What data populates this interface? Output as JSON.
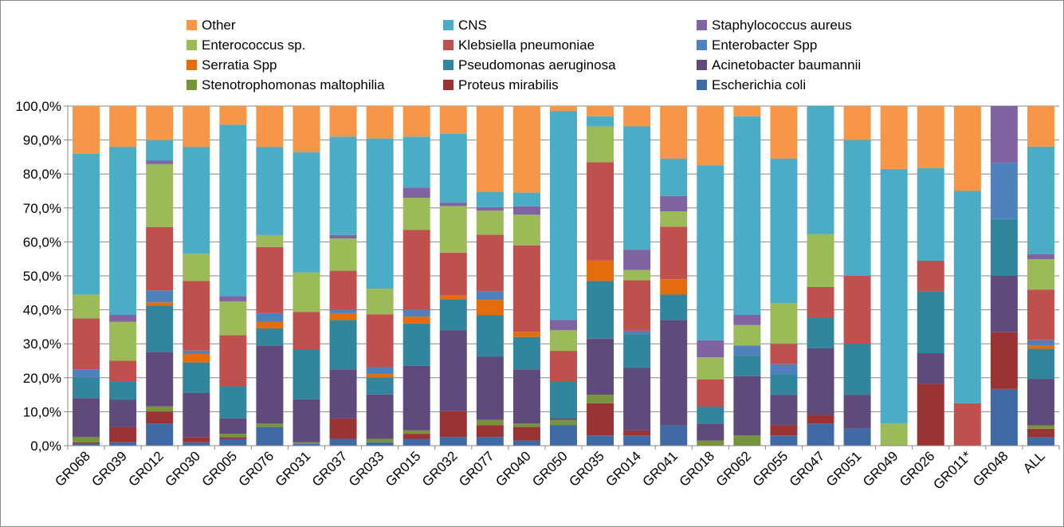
{
  "chart_data": {
    "type": "bar",
    "stacked": true,
    "percent": true,
    "ylim": [
      0,
      100
    ],
    "yticks": [
      "0,0%",
      "10,0%",
      "20,0%",
      "30,0%",
      "40,0%",
      "50,0%",
      "60,0%",
      "70,0%",
      "80,0%",
      "90,0%",
      "100,0%"
    ],
    "grid": true,
    "legend_position": "top",
    "categories": [
      "GR068",
      "GR039",
      "GR012",
      "GR030",
      "GR005",
      "GR076",
      "GR031",
      "GR037",
      "GR033",
      "GR015",
      "GR032",
      "GR077",
      "GR040",
      "GR050",
      "GR035",
      "GR014",
      "GR041",
      "GR018",
      "GR062",
      "GR055",
      "GR047",
      "GR051",
      "GR049",
      "GR026",
      "GR011*",
      "GR048",
      "ALL"
    ],
    "series": [
      {
        "name": "Escherichia coli",
        "color": "#3f6aa6",
        "values": [
          0.5,
          1,
          6.5,
          1,
          2,
          5.5,
          0.5,
          2,
          1,
          2,
          2.5,
          2.5,
          1.5,
          6,
          3,
          3,
          6,
          0,
          0,
          3,
          6.5,
          5,
          0,
          0,
          0,
          16.7,
          2.5
        ]
      },
      {
        "name": "Proteus mirabilis",
        "color": "#9b3335",
        "values": [
          0.5,
          4.5,
          3.5,
          1.5,
          0.5,
          0,
          0,
          6,
          0,
          1.5,
          7.5,
          3.5,
          4,
          0,
          9.5,
          1.5,
          0,
          0,
          0,
          3,
          2.5,
          0,
          0,
          18.2,
          0,
          16.7,
          2.5
        ]
      },
      {
        "name": "Stenotrophomonas maltophilia",
        "color": "#77933c",
        "values": [
          1.5,
          0,
          1.5,
          0,
          1,
          1,
          0.5,
          0,
          1,
          1,
          0,
          1.5,
          1,
          1.5,
          2.5,
          0,
          0,
          1.5,
          3,
          0,
          0,
          0,
          0,
          0,
          0,
          0,
          1
        ]
      },
      {
        "name": "Acinetobacter baumannii",
        "color": "#604a7b",
        "values": [
          11.5,
          8,
          16,
          13,
          4.5,
          23,
          12.5,
          14.5,
          13,
          19,
          23.5,
          18.5,
          16,
          0.5,
          16.5,
          18.5,
          31,
          5,
          17.5,
          9,
          19.5,
          10,
          0,
          9,
          0,
          16.6,
          13.7
        ]
      },
      {
        "name": "Pseudomonas aeruginosa",
        "color": "#31859c",
        "values": [
          6,
          5.5,
          13.5,
          9,
          9.5,
          5,
          14.5,
          14.5,
          5,
          12.5,
          9,
          12,
          9.5,
          10.5,
          17,
          10,
          7.5,
          5,
          6,
          6,
          9,
          15,
          0,
          18.2,
          0,
          16.7,
          9
        ]
      },
      {
        "name": "Serratia Spp",
        "color": "#e46c0a",
        "values": [
          0,
          0,
          1,
          2.5,
          0,
          2,
          0,
          2,
          1,
          2,
          1,
          4.5,
          1.5,
          0,
          6,
          0,
          4.5,
          0,
          0,
          0,
          0,
          0,
          0,
          0,
          0,
          0,
          1
        ]
      },
      {
        "name": "Enterobacter Spp",
        "color": "#4f81bd",
        "values": [
          2.5,
          0,
          3.5,
          1,
          0,
          2.5,
          0,
          1,
          2,
          2,
          0,
          2.5,
          0,
          0,
          0,
          1,
          0,
          0,
          3,
          3,
          0,
          0,
          0,
          0,
          0,
          16.6,
          1.5
        ]
      },
      {
        "name": "Klebsiella pneumoniae",
        "color": "#c0504d",
        "values": [
          15,
          6,
          18.5,
          20.5,
          15,
          19.5,
          11,
          11.5,
          15.5,
          23.5,
          12.5,
          16.5,
          25.5,
          9,
          29,
          15,
          15.5,
          8,
          0,
          6,
          9,
          20,
          0,
          9,
          12.5,
          0,
          15
        ]
      },
      {
        "name": "Enterococcus sp.",
        "color": "#9bbb59",
        "values": [
          7,
          11.5,
          18.5,
          8,
          10,
          3.5,
          11.5,
          9.5,
          7.5,
          9.5,
          13.5,
          7,
          9,
          6,
          10.5,
          3,
          4.5,
          6.5,
          6,
          12,
          15.5,
          0,
          6.5,
          0,
          0,
          0,
          9
        ]
      },
      {
        "name": "Staphylococcus aureus",
        "color": "#8064a2",
        "values": [
          0,
          2,
          1,
          0,
          1.5,
          0,
          0,
          1,
          0,
          3,
          1,
          1,
          2.5,
          3,
          0,
          6,
          4.5,
          5,
          3,
          0,
          0,
          0,
          0,
          0,
          0,
          16.7,
          1.5
        ]
      },
      {
        "name": "CNS",
        "color": "#4bacc6",
        "values": [
          41.5,
          49.5,
          6,
          31.5,
          50.5,
          26,
          35,
          29,
          44,
          15,
          20,
          4.5,
          4,
          60.5,
          3,
          36.5,
          11,
          51.5,
          58.5,
          42.5,
          37.5,
          40,
          75,
          27.3,
          62.5,
          0,
          31.8
        ]
      },
      {
        "name": "Other",
        "color": "#f79646",
        "values": [
          14,
          12,
          10,
          12,
          5.5,
          12,
          13.5,
          9,
          9.5,
          9,
          8,
          25,
          25.5,
          1.5,
          3,
          6,
          15.5,
          17.5,
          3,
          15.5,
          0,
          10,
          18.5,
          18.2,
          25,
          0,
          12
        ]
      }
    ]
  }
}
